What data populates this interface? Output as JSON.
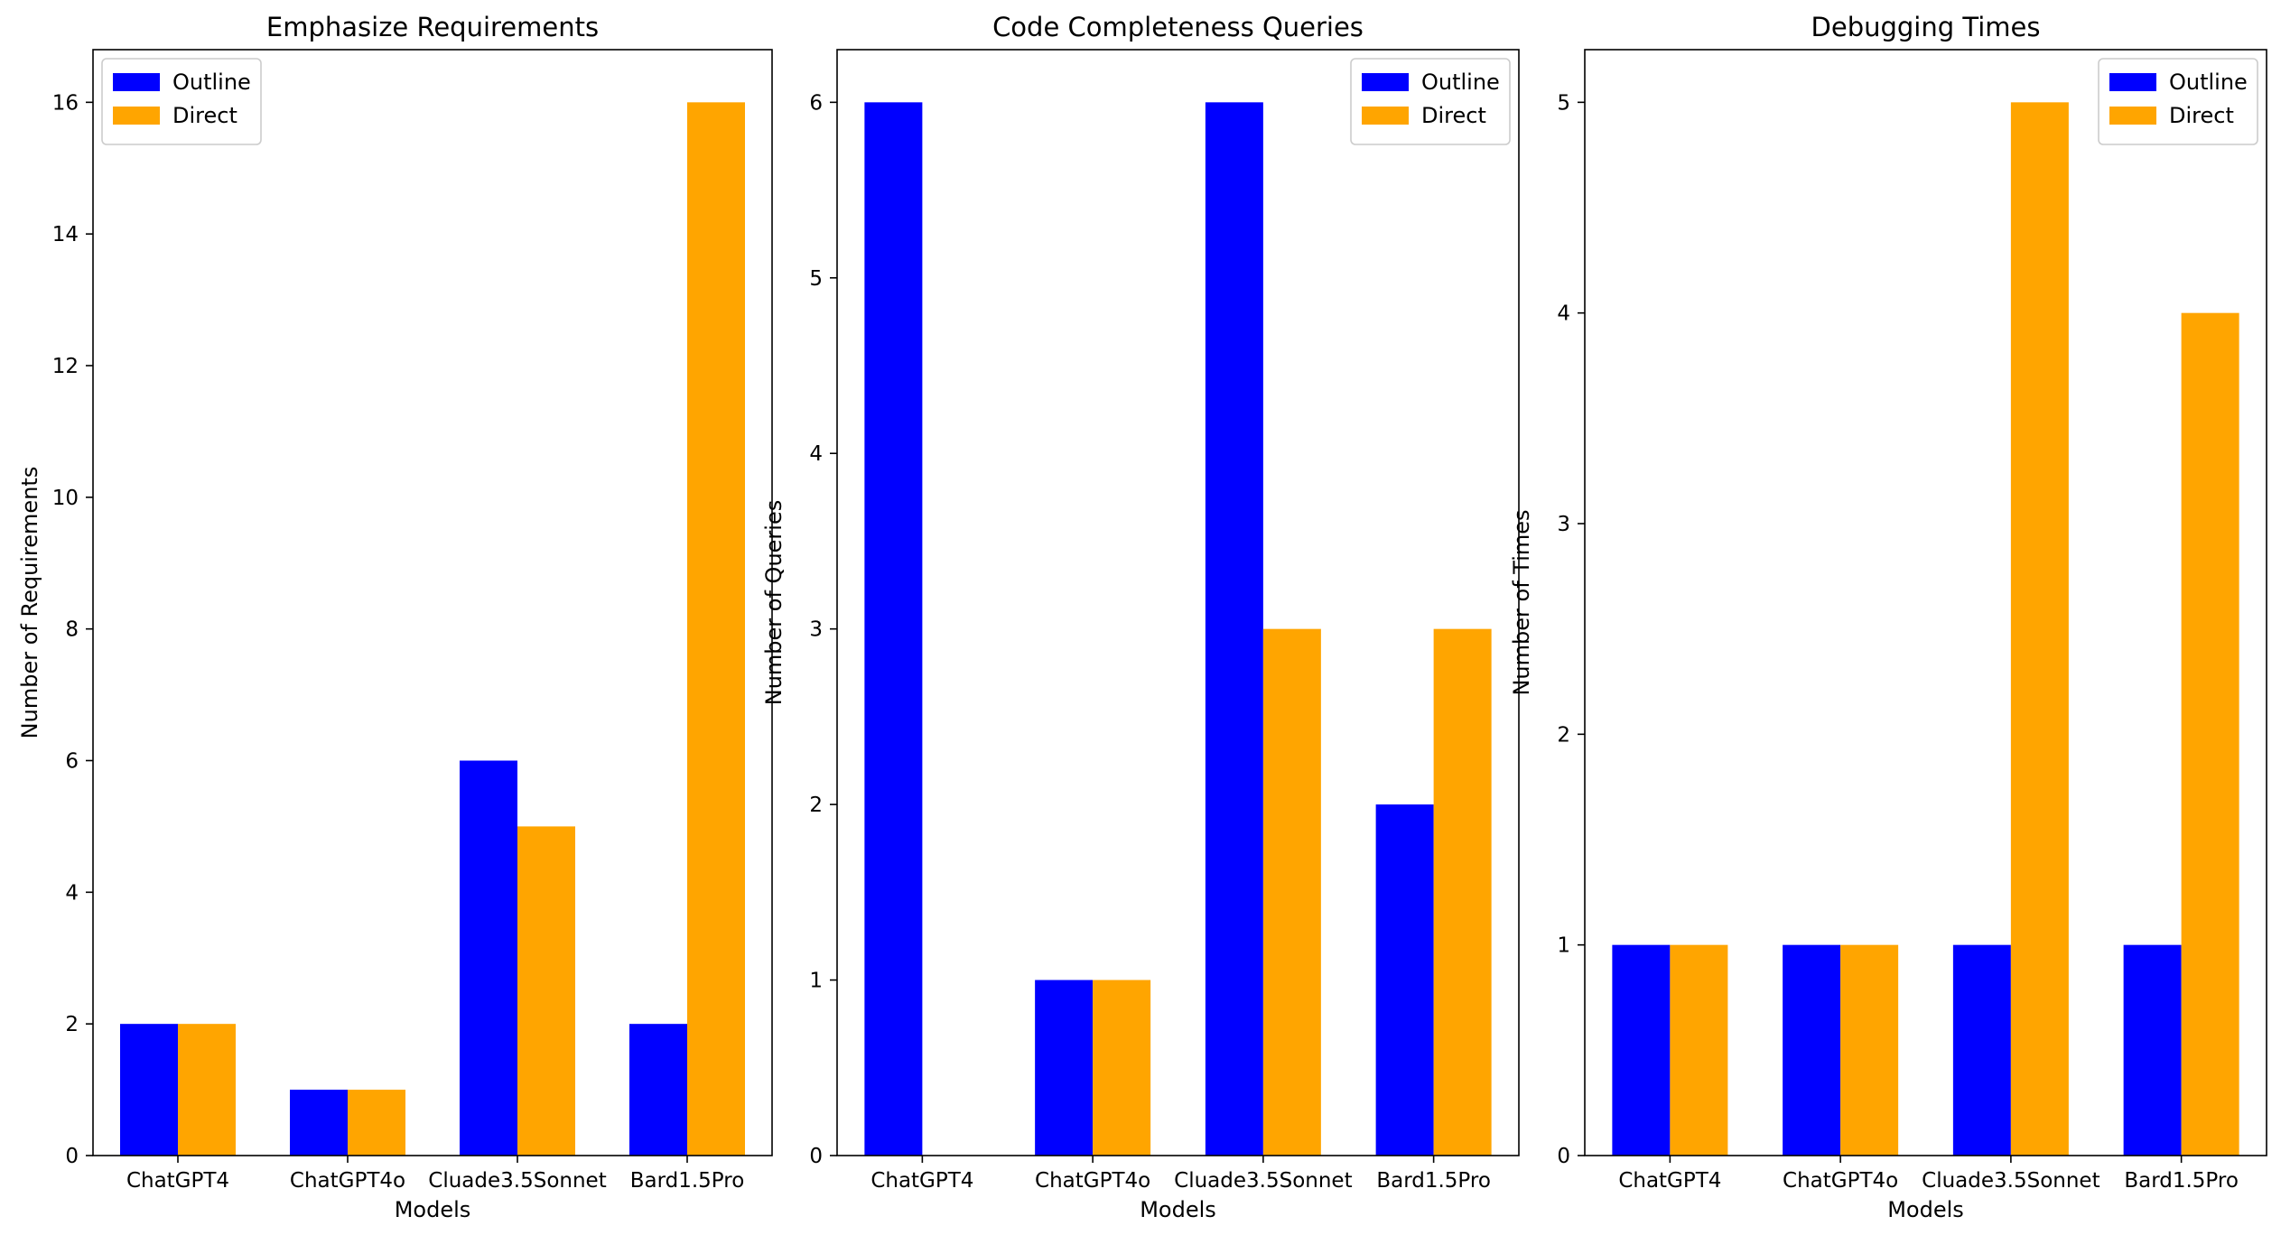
{
  "chart_data": [
    {
      "type": "bar",
      "title": "Emphasize Requirements",
      "xlabel": "Models",
      "ylabel": "Number of Requirements",
      "categories": [
        "ChatGPT4",
        "ChatGPT4o",
        "Cluade3.5Sonnet",
        "Bard1.5Pro"
      ],
      "series": [
        {
          "name": "Outline",
          "color": "#0000ff",
          "values": [
            2,
            1,
            6,
            2
          ]
        },
        {
          "name": "Direct",
          "color": "#ffa500",
          "values": [
            2,
            1,
            5,
            16
          ]
        }
      ],
      "ylim": [
        0,
        16.8
      ],
      "yticks": [
        0,
        2,
        4,
        6,
        8,
        10,
        12,
        14,
        16
      ],
      "legend_position": "top-left",
      "grid": false
    },
    {
      "type": "bar",
      "title": "Code Completeness Queries",
      "xlabel": "Models",
      "ylabel": "Number of Queries",
      "categories": [
        "ChatGPT4",
        "ChatGPT4o",
        "Cluade3.5Sonnet",
        "Bard1.5Pro"
      ],
      "series": [
        {
          "name": "Outline",
          "color": "#0000ff",
          "values": [
            6,
            1,
            6,
            2
          ]
        },
        {
          "name": "Direct",
          "color": "#ffa500",
          "values": [
            0,
            1,
            3,
            3
          ]
        }
      ],
      "ylim": [
        0,
        6.3
      ],
      "yticks": [
        0,
        1,
        2,
        3,
        4,
        5,
        6
      ],
      "legend_position": "top-right",
      "grid": false
    },
    {
      "type": "bar",
      "title": "Debugging Times",
      "xlabel": "Models",
      "ylabel": "Number of Times",
      "categories": [
        "ChatGPT4",
        "ChatGPT4o",
        "Cluade3.5Sonnet",
        "Bard1.5Pro"
      ],
      "series": [
        {
          "name": "Outline",
          "color": "#0000ff",
          "values": [
            1,
            1,
            1,
            1
          ]
        },
        {
          "name": "Direct",
          "color": "#ffa500",
          "values": [
            1,
            1,
            5,
            4
          ]
        }
      ],
      "ylim": [
        0,
        5.25
      ],
      "yticks": [
        0,
        1,
        2,
        3,
        4,
        5
      ],
      "legend_position": "top-right",
      "grid": false
    }
  ]
}
